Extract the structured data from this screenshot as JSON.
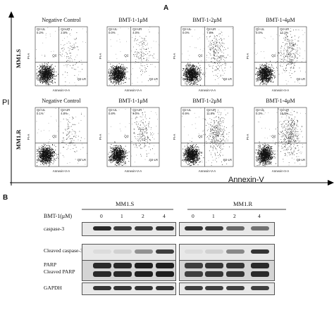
{
  "figure_a": {
    "letter": "A",
    "x_axis_title": "Annexin-V",
    "y_axis_title": "PI",
    "rows": [
      {
        "label": "MM1.S",
        "plots": [
          {
            "title": "Negative Control",
            "ul": "Q2-UL",
            "ul_pct": "0.2%",
            "ur": "Q2-UR",
            "ur_pct": "2.5%",
            "ll": "Q2-LL",
            "ll_pct": "",
            "lr": "Q2-LR",
            "lr_pct": "",
            "center": "Q2",
            "density": 0.12
          },
          {
            "title": "BMT-1-1μM",
            "ul": "Q2-UL",
            "ul_pct": "0.0%",
            "ur": "Q2-UR",
            "ur_pct": "4.0%",
            "ll": "Q2-LL",
            "ll_pct": "",
            "lr": "Q2-LR",
            "lr_pct": "",
            "center": "Q2",
            "density": 0.2
          },
          {
            "title": "BMT-1-2μM",
            "ul": "Q2-UL",
            "ul_pct": "0.0%",
            "ur": "Q2-UR",
            "ur_pct": "7.8%",
            "ll": "Q2-LL",
            "ll_pct": "",
            "lr": "Q2-LR",
            "lr_pct": "",
            "center": "Q2",
            "density": 0.45
          },
          {
            "title": "BMT-1-4μM",
            "ul": "Q2-UL",
            "ul_pct": "0.0%",
            "ur": "Q2-UR",
            "ur_pct": "12.1%",
            "ll": "Q2-LL",
            "ll_pct": "",
            "lr": "Q2-LR",
            "lr_pct": "",
            "center": "Q2",
            "density": 0.55
          }
        ]
      },
      {
        "label": "MM1.R",
        "plots": [
          {
            "title": "Negative Control",
            "ul": "Q2-UL",
            "ul_pct": "0.1%",
            "ur": "Q2-UR",
            "ur_pct": "4.8%",
            "ll": "Q2-LL",
            "ll_pct": "",
            "lr": "Q2-LR",
            "lr_pct": "",
            "center": "Q2",
            "density": 0.15
          },
          {
            "title": "BMT-1-1μM",
            "ul": "Q2-UL",
            "ul_pct": "0.8%",
            "ur": "Q2-UR",
            "ur_pct": "9.0%",
            "ll": "Q2-LL",
            "ll_pct": "",
            "lr": "Q2-LR",
            "lr_pct": "",
            "center": "Q2",
            "density": 0.35
          },
          {
            "title": "BMT-1-2μM",
            "ul": "Q2-UL",
            "ul_pct": "0.9%",
            "ur": "Q2-UR",
            "ur_pct": "11.6%",
            "ll": "Q2-LL",
            "ll_pct": "",
            "lr": "Q2-LR",
            "lr_pct": "",
            "center": "Q2",
            "density": 0.7
          },
          {
            "title": "BMT-1-4μM",
            "ul": "Q2-UL",
            "ul_pct": "0.3%",
            "ur": "Q2-UR",
            "ur_pct": "15.0%",
            "ll": "Q2-LL",
            "ll_pct": "",
            "lr": "Q2-LR",
            "lr_pct": "",
            "center": "Q2",
            "density": 0.85
          }
        ]
      }
    ],
    "plot_x_label": "Annexin-V-A",
    "plot_y_label": "PI-A"
  },
  "figure_b": {
    "letter": "B",
    "dose_label": "BMT-1(μM)",
    "groups": [
      {
        "name": "MM1.S",
        "doses": [
          "0",
          "1",
          "2",
          "4"
        ]
      },
      {
        "name": "MM1.R",
        "doses": [
          "0",
          "1",
          "2",
          "4"
        ]
      }
    ],
    "rows": [
      {
        "label": "caspase-3",
        "intensity": [
          0.9,
          0.8,
          0.8,
          0.85
        ],
        "intensity_r": [
          0.85,
          0.8,
          0.6,
          0.55
        ]
      },
      {
        "label": "Cleaved caspase-3",
        "intensity": [
          0.05,
          0.1,
          0.4,
          0.8
        ],
        "intensity_r": [
          0.05,
          0.1,
          0.45,
          0.85
        ]
      },
      {
        "label": "PARP",
        "label2": "Cleaved PARP",
        "intensity": [
          0.9,
          0.9,
          0.95,
          0.95
        ],
        "intensity_r": [
          0.8,
          0.85,
          0.85,
          0.9
        ]
      },
      {
        "label": "GAPDH",
        "intensity": [
          0.85,
          0.85,
          0.85,
          0.85
        ],
        "intensity_r": [
          0.8,
          0.8,
          0.8,
          0.8
        ]
      }
    ]
  }
}
